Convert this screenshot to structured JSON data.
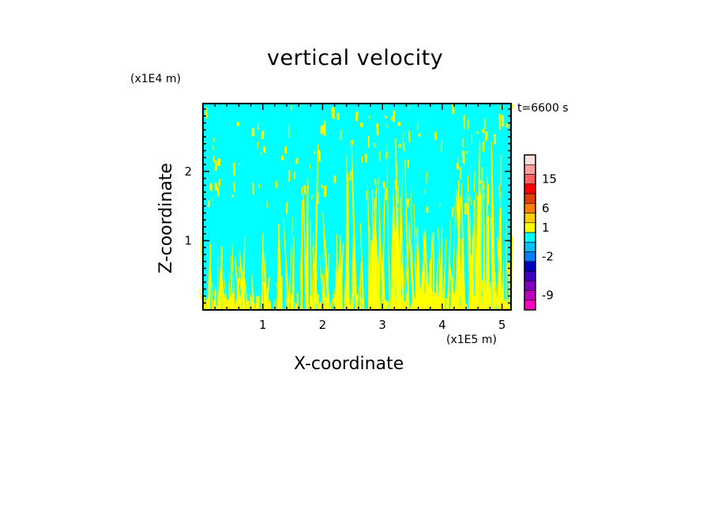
{
  "chart_data": {
    "type": "heatmap",
    "title": "vertical velocity",
    "xlabel": "X-coordinate",
    "ylabel": "Z-coordinate",
    "x_unit_label": "(x1E5 m)",
    "z_unit_label": "(x1E4 m)",
    "time_label": "t=6600 s",
    "xlim": [
      0,
      5.15
    ],
    "ylim": [
      0,
      2.98
    ],
    "x_ticks": [
      "1",
      "2",
      "3",
      "4",
      "5"
    ],
    "y_ticks": [
      "1",
      "2"
    ],
    "background_color": "#00ffff",
    "updraft_color": "#ffff00",
    "colorbar": {
      "colors": [
        "#ff00c0",
        "#c000c0",
        "#8000c0",
        "#4000c0",
        "#0000c0",
        "#0080ff",
        "#00c0ff",
        "#00ffff",
        "#ffff00",
        "#ffd000",
        "#ff8000",
        "#e04000",
        "#ff0000",
        "#ff6060",
        "#ffa0a0",
        "#ffe0e0"
      ],
      "tick_labels": [
        {
          "text": "-9",
          "bin": 1.5
        },
        {
          "text": "-2",
          "bin": 5.5
        },
        {
          "text": "1",
          "bin": 8.5
        },
        {
          "text": "6",
          "bin": 10.5
        },
        {
          "text": "15",
          "bin": 13.5
        }
      ]
    }
  }
}
